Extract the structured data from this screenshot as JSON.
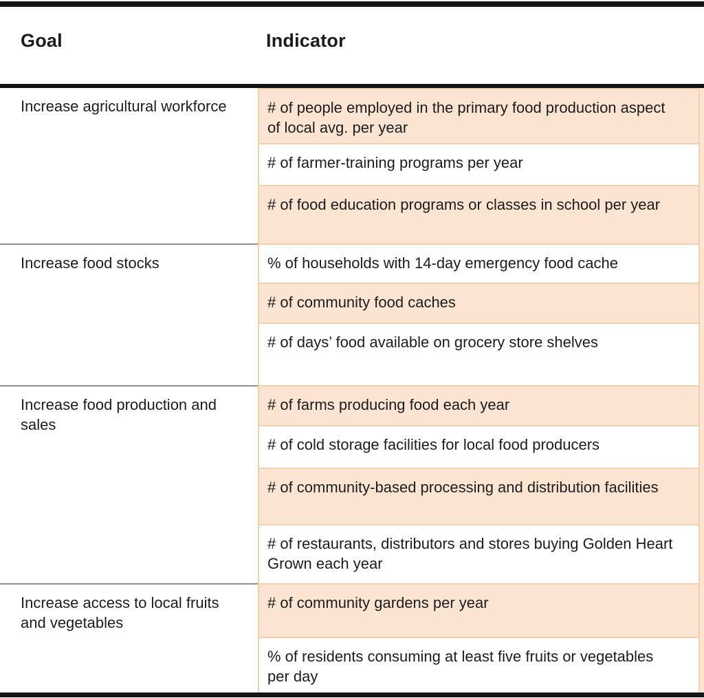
{
  "header": {
    "goal": "Goal",
    "indicator": "Indicator"
  },
  "colors": {
    "peach_fill": "#fce4d3",
    "peach_border": "#f2cfad",
    "rule_black": "#141414",
    "divider_gray": "#8f8f8f",
    "text": "#1c1c1c"
  },
  "table": {
    "groups": [
      {
        "goal": "Increase agricultural workforce",
        "indicators": [
          "# of people employed in the primary food production aspect of local avg. per year",
          "# of farmer-training programs per year",
          "# of food education programs or classes in school per year"
        ]
      },
      {
        "goal": "Increase food stocks",
        "indicators": [
          "% of households with 14-day emergency food cache",
          "# of community food caches",
          "# of days’ food available on grocery store shelves"
        ]
      },
      {
        "goal": "Increase food production and sales",
        "indicators": [
          "# of farms producing food each year",
          "# of cold storage facilities for local food producers",
          "# of community-based processing and distribution facilities",
          "# of restaurants, distributors and stores buying Golden Heart Grown each year"
        ]
      },
      {
        "goal": "Increase access to local fruits and vegetables",
        "indicators": [
          "# of community gardens per year",
          "% of residents consuming at least five fruits or vegetables per day"
        ]
      }
    ]
  }
}
